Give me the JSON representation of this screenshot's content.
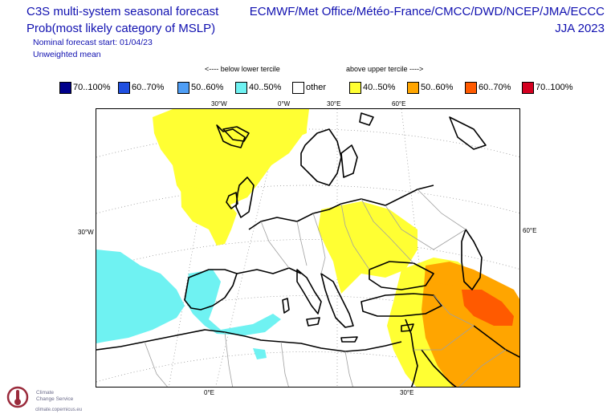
{
  "header": {
    "title_line1": "C3S multi-system seasonal forecast",
    "title_line2": "Prob(most likely category of MSLP)",
    "forecast_start": "Nominal forecast start: 01/04/23",
    "weighting": "Unweighted mean",
    "systems": "ECMWF/Met Office/Météo-France/CMCC/DWD/NCEP/JMA/ECCC",
    "season": "JJA 2023"
  },
  "terciles": {
    "lower": "<---- below lower tercile",
    "upper": "above upper tercile ---->"
  },
  "legend": [
    {
      "label": "70..100%",
      "color": "#00008b"
    },
    {
      "label": "60..70%",
      "color": "#1f4fe0"
    },
    {
      "label": "50..60%",
      "color": "#4f9ef5"
    },
    {
      "label": "40..50%",
      "color": "#6ff2f2"
    },
    {
      "label": "other",
      "color": "#ffffff"
    },
    {
      "label": "40..50%",
      "color": "#ffff33"
    },
    {
      "label": "50..60%",
      "color": "#ffa500"
    },
    {
      "label": "60..70%",
      "color": "#ff5a00"
    },
    {
      "label": "70..100%",
      "color": "#d40020"
    }
  ],
  "map_labels": {
    "lon_30w_top": "30°W",
    "lon_0_top": "0°W",
    "lon_30e_top": "30°E",
    "lon_60e_top": "60°E",
    "left_30w": "30°W",
    "right_60e": "60°E",
    "lon_0_bottom": "0°E",
    "lon_30e_bottom": "30°E"
  },
  "logo": {
    "line1": "Climate",
    "line2": "Change Service",
    "url": "climate.copernicus.eu"
  }
}
